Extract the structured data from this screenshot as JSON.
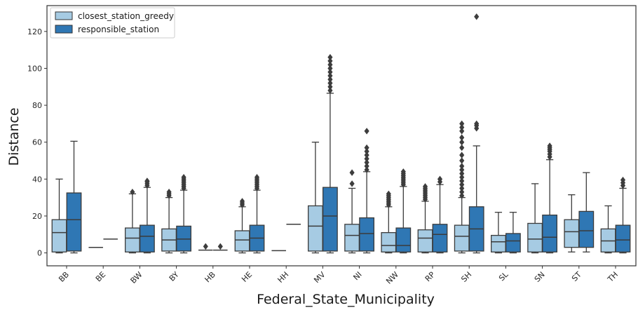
{
  "chart_data": {
    "type": "box",
    "xlabel": "Federal_State_Municipality",
    "ylabel": "Distance",
    "ylim": [
      -7,
      134
    ],
    "yticks": [
      0,
      20,
      40,
      60,
      80,
      100,
      120
    ],
    "categories": [
      "BB",
      "BE",
      "BW",
      "BY",
      "HB",
      "HE",
      "HH",
      "MV",
      "NI",
      "NW",
      "RP",
      "SH",
      "SL",
      "SN",
      "ST",
      "TH"
    ],
    "legend": {
      "position": "upper-left"
    },
    "series": [
      {
        "name": "closest_station_greedy",
        "color": "#a6cbe3",
        "boxes": [
          {
            "q1": 0.5,
            "median": 11,
            "q3": 18,
            "whislo": 0,
            "whishi": 40,
            "fliers": []
          },
          {
            "q1": 3,
            "median": 3,
            "q3": 3,
            "whislo": 3,
            "whishi": 3,
            "fliers": []
          },
          {
            "q1": 0.5,
            "median": 8,
            "q3": 13.5,
            "whislo": 0,
            "whishi": 32,
            "fliers": [
              33
            ]
          },
          {
            "q1": 1,
            "median": 7,
            "q3": 13,
            "whislo": 0,
            "whishi": 30,
            "fliers": [
              31,
              32,
              33
            ]
          },
          {
            "q1": 1.5,
            "median": 1.5,
            "q3": 1.5,
            "whislo": 1.5,
            "whishi": 1.5,
            "fliers": [
              3.5
            ]
          },
          {
            "q1": 1,
            "median": 7,
            "q3": 12,
            "whislo": 0,
            "whishi": 25,
            "fliers": [
              26,
              27,
              28
            ]
          },
          {
            "q1": 1.2,
            "median": 1.2,
            "q3": 1.2,
            "whislo": 1.2,
            "whishi": 1.2,
            "fliers": []
          },
          {
            "q1": 1,
            "median": 14.5,
            "q3": 25.5,
            "whislo": 0,
            "whishi": 60,
            "fliers": []
          },
          {
            "q1": 1,
            "median": 9.5,
            "q3": 15.5,
            "whislo": 0,
            "whishi": 35,
            "fliers": [
              37.5,
              43.5
            ]
          },
          {
            "q1": 0.5,
            "median": 4,
            "q3": 11,
            "whislo": 0,
            "whishi": 25,
            "fliers": [
              26,
              27,
              28,
              29,
              30,
              31,
              32
            ]
          },
          {
            "q1": 0.5,
            "median": 8,
            "q3": 12.5,
            "whislo": 0,
            "whishi": 28,
            "fliers": [
              29,
              30,
              31,
              32,
              33,
              34,
              35,
              36
            ]
          },
          {
            "q1": 1,
            "median": 9,
            "q3": 15,
            "whislo": 0,
            "whishi": 30,
            "fliers": [
              31,
              33,
              35,
              37,
              39,
              41,
              43,
              45,
              47,
              50,
              53,
              57,
              60,
              62.5,
              66,
              68,
              70
            ]
          },
          {
            "q1": 0.5,
            "median": 6,
            "q3": 9.5,
            "whislo": 0,
            "whishi": 22,
            "fliers": []
          },
          {
            "q1": 0.5,
            "median": 7.5,
            "q3": 16,
            "whislo": 0,
            "whishi": 37.5,
            "fliers": []
          },
          {
            "q1": 3,
            "median": 11.5,
            "q3": 18,
            "whislo": 0.5,
            "whishi": 31.5,
            "fliers": []
          },
          {
            "q1": 0.5,
            "median": 6.5,
            "q3": 13,
            "whislo": 0,
            "whishi": 25.5,
            "fliers": []
          }
        ]
      },
      {
        "name": "responsible_station",
        "color": "#2f77b4",
        "boxes": [
          {
            "q1": 1,
            "median": 18,
            "q3": 32.5,
            "whislo": 0,
            "whishi": 60.5,
            "fliers": []
          },
          {
            "q1": 7.5,
            "median": 7.5,
            "q3": 7.5,
            "whislo": 7.5,
            "whishi": 7.5,
            "fliers": []
          },
          {
            "q1": 0.5,
            "median": 9,
            "q3": 15,
            "whislo": 0,
            "whishi": 35.5,
            "fliers": [
              36.5,
              37.5,
              38.5,
              39
            ]
          },
          {
            "q1": 1,
            "median": 7.5,
            "q3": 14.5,
            "whislo": 0,
            "whishi": 34,
            "fliers": [
              35,
              36,
              37,
              38,
              39,
              40,
              41
            ]
          },
          {
            "q1": 1.5,
            "median": 1.5,
            "q3": 1.5,
            "whislo": 1.5,
            "whishi": 1.5,
            "fliers": [
              3.5
            ]
          },
          {
            "q1": 1,
            "median": 8,
            "q3": 15,
            "whislo": 0,
            "whishi": 34,
            "fliers": [
              35,
              36,
              37,
              38,
              39,
              40,
              41
            ]
          },
          {
            "q1": 15.5,
            "median": 15.5,
            "q3": 15.5,
            "whislo": 15.5,
            "whishi": 15.5,
            "fliers": []
          },
          {
            "q1": 1,
            "median": 20,
            "q3": 35.5,
            "whislo": 0,
            "whishi": 86.5,
            "fliers": [
              88,
              90,
              92,
              94,
              96,
              98,
              100,
              102,
              104,
              106
            ]
          },
          {
            "q1": 1,
            "median": 10.5,
            "q3": 19,
            "whislo": 0,
            "whishi": 44,
            "fliers": [
              45,
              47,
              49,
              51,
              53,
              55,
              57,
              66
            ]
          },
          {
            "q1": 0.5,
            "median": 4,
            "q3": 13.5,
            "whislo": 0,
            "whishi": 36,
            "fliers": [
              37,
              38,
              39,
              40,
              41,
              42,
              43,
              44
            ]
          },
          {
            "q1": 0.5,
            "median": 10,
            "q3": 15.5,
            "whislo": 0,
            "whishi": 37,
            "fliers": [
              38.5,
              40
            ]
          },
          {
            "q1": 1,
            "median": 13,
            "q3": 25,
            "whislo": 0,
            "whishi": 58,
            "fliers": [
              67.5,
              69,
              70,
              128
            ]
          },
          {
            "q1": 0.5,
            "median": 6.5,
            "q3": 10.5,
            "whislo": 0,
            "whishi": 22,
            "fliers": []
          },
          {
            "q1": 0.5,
            "median": 8.5,
            "q3": 20.5,
            "whislo": 0,
            "whishi": 50.5,
            "fliers": [
              52,
              53.5,
              55,
              56,
              57,
              58
            ]
          },
          {
            "q1": 3,
            "median": 12,
            "q3": 22.5,
            "whislo": 0.5,
            "whishi": 43.5,
            "fliers": []
          },
          {
            "q1": 0.5,
            "median": 7,
            "q3": 15,
            "whislo": 0,
            "whishi": 35,
            "fliers": [
              36.5,
              38,
              39.5
            ]
          }
        ]
      }
    ]
  }
}
